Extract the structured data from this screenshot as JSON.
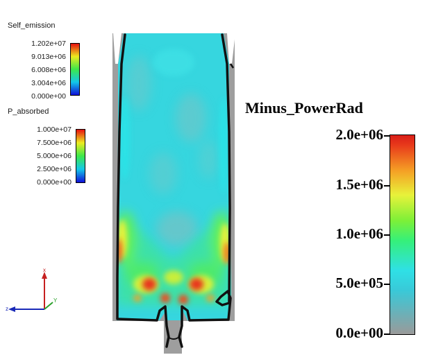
{
  "legend_small": [
    {
      "title": "Self_emission",
      "ticks": [
        "1.202e+07",
        "9.013e+06",
        "6.008e+06",
        "3.004e+06",
        "0.000e+00"
      ],
      "colormap": "rainbow"
    },
    {
      "title": "P_absorbed",
      "ticks": [
        "1.000e+07",
        "7.500e+06",
        "5.000e+06",
        "2.500e+06",
        "0.000e+00"
      ],
      "colormap": "rainbow"
    }
  ],
  "main_legend": {
    "title": "Minus_PowerRad",
    "ticks": [
      "2.0e+06",
      "1.5e+06",
      "1.0e+06",
      "5.0e+05",
      "0.0e+00"
    ],
    "colormap": "gray-cyan-green-yellow-red"
  },
  "axes_triad": {
    "x": "x",
    "y": "Y",
    "z": "z"
  },
  "colors": {
    "low": "#9a9a9a",
    "cyan": "#39d3e0",
    "green": "#35f07a",
    "yellow": "#e8f23a",
    "red": "#d91e18",
    "outline": "#111111"
  }
}
